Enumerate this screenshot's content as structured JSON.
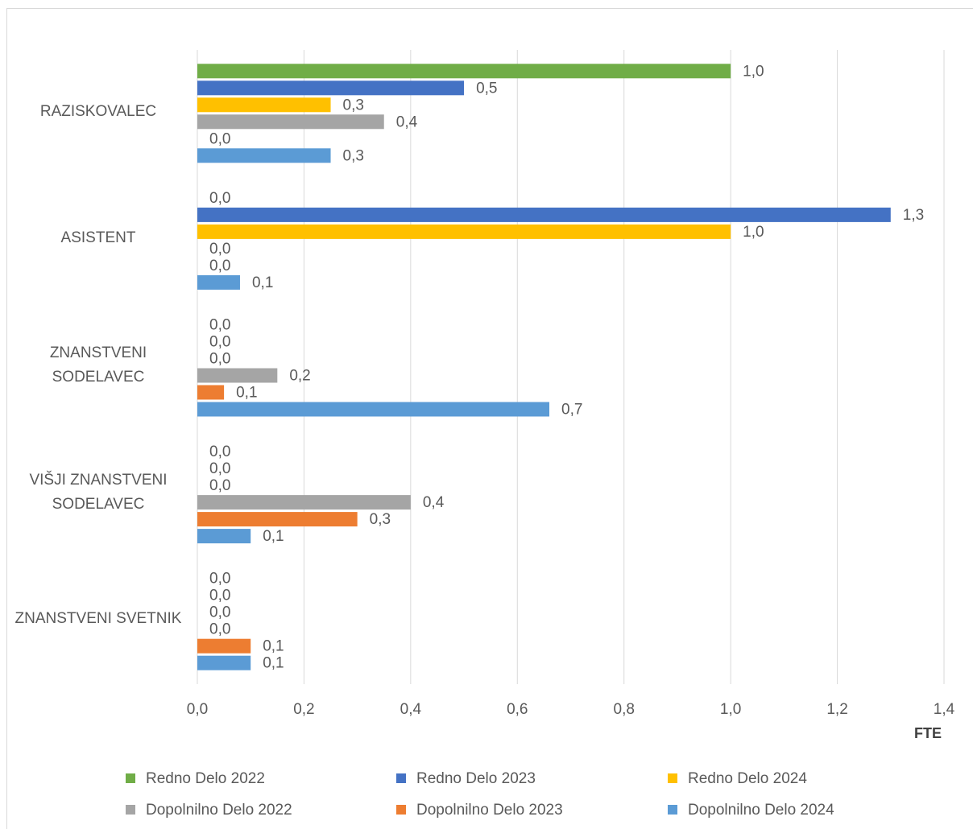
{
  "chart_data": {
    "type": "barh",
    "categories": [
      "RAZISKOVALEC",
      "ASISTENT",
      "ZNANSTVENI SODELAVEC",
      "VIŠJI ZNANSTVENI SODELAVEC",
      "ZNANSTVENI SVETNIK"
    ],
    "series": [
      {
        "name": "Redno Delo 2022",
        "color": "#70ad47",
        "values": [
          1.0,
          0,
          0,
          0,
          0
        ],
        "value_labels": [
          "1,0",
          "0,0",
          "0,0",
          "0,0",
          "0,0"
        ]
      },
      {
        "name": "Redno Delo 2023",
        "color": "#4472c4",
        "values": [
          0.5,
          1.3,
          0,
          0,
          0
        ],
        "value_labels": [
          "0,5",
          "1,3",
          "0,0",
          "0,0",
          "0,0"
        ]
      },
      {
        "name": "Redno Delo 2024",
        "color": "#ffc000",
        "values": [
          0.25,
          1.0,
          0,
          0,
          0
        ],
        "value_labels": [
          "0,3",
          "1,0",
          "0,0",
          "0,0",
          "0,0"
        ]
      },
      {
        "name": "Dopolnilno Delo 2022",
        "color": "#a5a5a5",
        "values": [
          0.35,
          0,
          0.15,
          0.4,
          0
        ],
        "value_labels": [
          "0,4",
          "0,0",
          "0,2",
          "0,4",
          "0,0"
        ]
      },
      {
        "name": "Dopolnilno Delo 2023",
        "color": "#ed7d31",
        "values": [
          0,
          0,
          0.05,
          0.3,
          0.1
        ],
        "value_labels": [
          "0,0",
          "0,0",
          "0,1",
          "0,3",
          "0,1"
        ]
      },
      {
        "name": "Dopolnilno Delo 2024",
        "color": "#5b9bd5",
        "values": [
          0.25,
          0.08,
          0.66,
          0.1,
          0.1
        ],
        "value_labels": [
          "0,3",
          "0,1",
          "0,7",
          "0,1",
          "0,1"
        ]
      }
    ],
    "xlabel": "FTE",
    "xlim": [
      0,
      1.4
    ],
    "xticks": [
      {
        "value": 0,
        "label": "0,0"
      },
      {
        "value": 0.2,
        "label": "0,2"
      },
      {
        "value": 0.4,
        "label": "0,4"
      },
      {
        "value": 0.6,
        "label": "0,6"
      },
      {
        "value": 0.8,
        "label": "0,8"
      },
      {
        "value": 1.0,
        "label": "1,0"
      },
      {
        "value": 1.2,
        "label": "1,2"
      },
      {
        "value": 1.4,
        "label": "1,4"
      }
    ],
    "grid": true,
    "legend": "bottom"
  }
}
